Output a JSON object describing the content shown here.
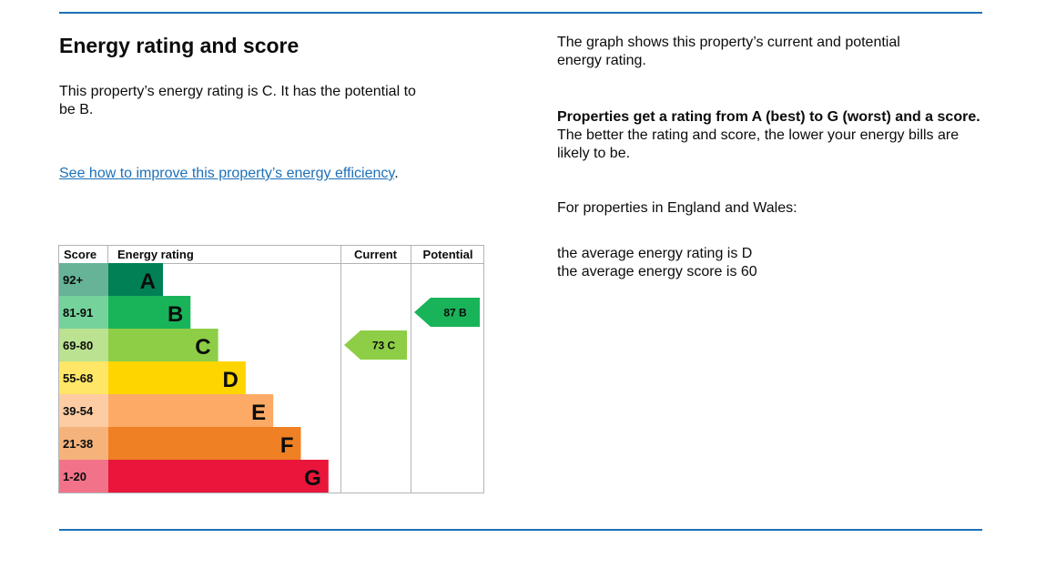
{
  "left": {
    "heading": "Energy rating and score",
    "intro": "This property’s energy rating is C. It has the potential to be B.",
    "link_text": "See how to improve this property’s energy efficiency",
    "link_suffix": "."
  },
  "right": {
    "p1": "The graph shows this property’s current and potential energy rating.",
    "p2_bold": "Properties get a rating from A (best) to G (worst) and a score.",
    "p2_rest": " The better the rating and score, the lower your energy bills are likely to be.",
    "p3": "For properties in England and Wales:",
    "avg_rating": "the average energy rating is D",
    "avg_score": "the average energy score is 60"
  },
  "colors": {
    "rule": "#1d70b8",
    "link": "#1d70b8"
  },
  "chart_data": {
    "type": "table",
    "headers": [
      "Score",
      "Energy rating",
      "Current",
      "Potential"
    ],
    "bands": [
      {
        "letter": "A",
        "range": "92+",
        "color": "#008054",
        "light": "#66b398"
      },
      {
        "letter": "B",
        "range": "81-91",
        "color": "#19b459",
        "light": "#75d29b"
      },
      {
        "letter": "C",
        "range": "69-80",
        "color": "#8dce46",
        "light": "#bbe290"
      },
      {
        "letter": "D",
        "range": "55-68",
        "color": "#ffd500",
        "light": "#ffe666"
      },
      {
        "letter": "E",
        "range": "39-54",
        "color": "#fcaa65",
        "light": "#fdcca3"
      },
      {
        "letter": "F",
        "range": "21-38",
        "color": "#ef8023",
        "light": "#f5b37b"
      },
      {
        "letter": "G",
        "range": "1-20",
        "color": "#e9153b",
        "light": "#f27389"
      }
    ],
    "current": {
      "score": 73,
      "band": "C",
      "label": "73 C"
    },
    "potential": {
      "score": 87,
      "band": "B",
      "label": "87 B"
    }
  }
}
